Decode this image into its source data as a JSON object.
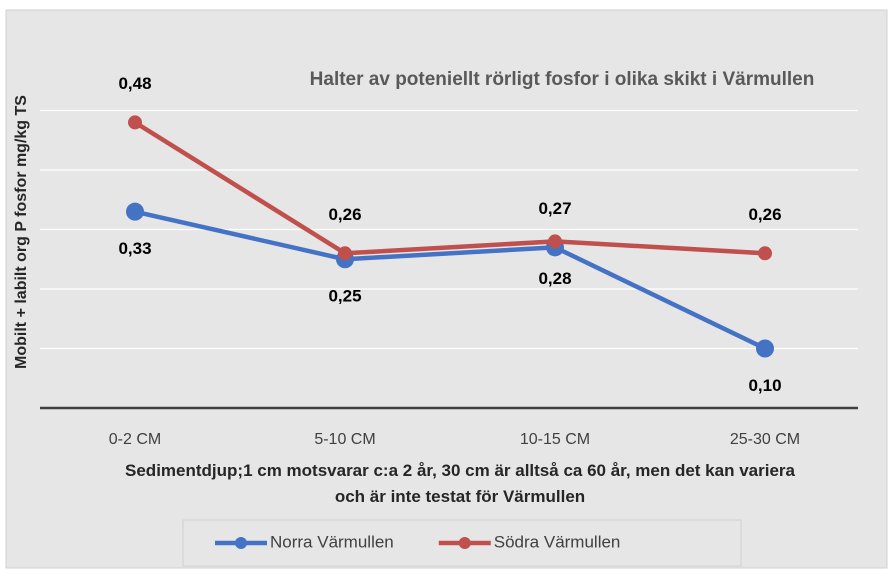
{
  "chart_data": {
    "type": "line",
    "title": "Halter av poteniellt rörligt fosfor i olika skikt i Värmullen",
    "y_label": "Mobilt + labilt org P fosfor mg/kg TS",
    "x_label": "Sedimentdjup;1 cm motsvarar c:a 2 år, 30 cm är alltså ca 60 år, men det kan variera och är inte testat för Värmullen",
    "categories": [
      "0-2 CM",
      "5-10 CM",
      "10-15 CM",
      "25-30 CM"
    ],
    "series": [
      {
        "name": "Norra Värmullen",
        "color": "#4472c4",
        "values": [
          0.33,
          0.25,
          0.27,
          0.1
        ],
        "value_labels": [
          "0,33",
          "0,25",
          "0,27",
          "0,10"
        ]
      },
      {
        "name": "Södra Värmullen",
        "color": "#c0504d",
        "values": [
          0.48,
          0.26,
          0.28,
          0.26
        ],
        "value_labels": [
          "0,48",
          "0,26",
          "0,28",
          "0,26"
        ]
      }
    ],
    "ylim": [
      0,
      0.6
    ],
    "yticks": [
      0,
      0.1,
      0.2,
      0.3,
      0.4,
      0.5
    ],
    "grid": true,
    "legend": "bottom"
  }
}
